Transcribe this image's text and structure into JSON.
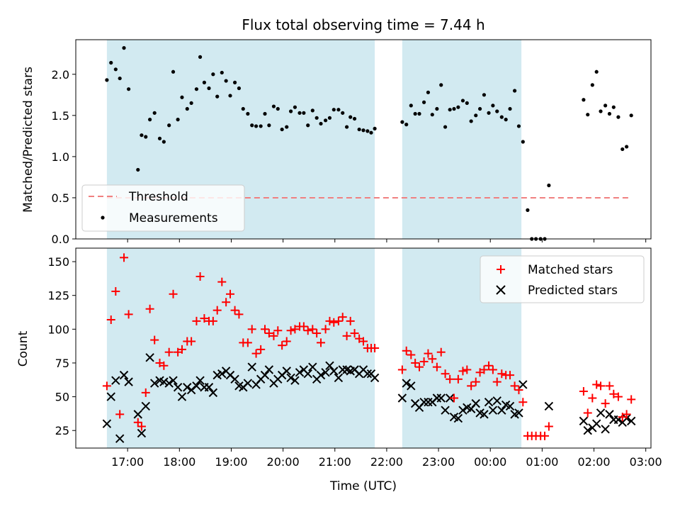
{
  "chart_data": {
    "type": "scatter",
    "title": "Flux total observing time = 7.44 h",
    "xlabel": "Time (UTC)",
    "x_tick_labels": [
      "17:00",
      "18:00",
      "19:00",
      "20:00",
      "21:00",
      "22:00",
      "23:00",
      "00:00",
      "01:00",
      "02:00",
      "03:00"
    ],
    "shaded_intervals_hours": [
      [
        16.6,
        21.77
      ],
      [
        22.3,
        24.6
      ]
    ],
    "colors": {
      "shade": "#add8e6",
      "matched": "#ff0000",
      "predicted": "#000000",
      "threshold": "#f08080",
      "measure": "#000000"
    },
    "top": {
      "ylabel": "Matched/Predicted stars",
      "ylim": [
        0,
        2.42
      ],
      "y_ticks": [
        "0.0",
        "0.5",
        "1.0",
        "1.5",
        "2.0"
      ],
      "threshold_value": 0.5,
      "legend": [
        "Threshold",
        "Measurements"
      ],
      "legend_position": "lower-left",
      "measurements": [
        [
          16.6,
          1.93
        ],
        [
          16.68,
          2.14
        ],
        [
          16.77,
          2.06
        ],
        [
          16.85,
          1.95
        ],
        [
          16.93,
          2.32
        ],
        [
          17.02,
          1.82
        ],
        [
          17.2,
          0.84
        ],
        [
          17.27,
          1.26
        ],
        [
          17.35,
          1.24
        ],
        [
          17.43,
          1.45
        ],
        [
          17.52,
          1.53
        ],
        [
          17.62,
          1.22
        ],
        [
          17.7,
          1.18
        ],
        [
          17.8,
          1.38
        ],
        [
          17.88,
          2.03
        ],
        [
          17.97,
          1.45
        ],
        [
          18.05,
          1.72
        ],
        [
          18.15,
          1.58
        ],
        [
          18.23,
          1.65
        ],
        [
          18.33,
          1.82
        ],
        [
          18.4,
          2.21
        ],
        [
          18.48,
          1.9
        ],
        [
          18.57,
          1.83
        ],
        [
          18.65,
          2.0
        ],
        [
          18.73,
          1.73
        ],
        [
          18.82,
          2.02
        ],
        [
          18.9,
          1.92
        ],
        [
          18.98,
          1.74
        ],
        [
          19.07,
          1.9
        ],
        [
          19.15,
          1.83
        ],
        [
          19.23,
          1.58
        ],
        [
          19.32,
          1.52
        ],
        [
          19.4,
          1.38
        ],
        [
          19.48,
          1.37
        ],
        [
          19.57,
          1.37
        ],
        [
          19.65,
          1.52
        ],
        [
          19.73,
          1.38
        ],
        [
          19.82,
          1.61
        ],
        [
          19.9,
          1.58
        ],
        [
          19.98,
          1.33
        ],
        [
          20.07,
          1.36
        ],
        [
          20.15,
          1.55
        ],
        [
          20.23,
          1.6
        ],
        [
          20.32,
          1.53
        ],
        [
          20.4,
          1.53
        ],
        [
          20.48,
          1.38
        ],
        [
          20.57,
          1.56
        ],
        [
          20.65,
          1.47
        ],
        [
          20.73,
          1.4
        ],
        [
          20.82,
          1.44
        ],
        [
          20.9,
          1.47
        ],
        [
          20.98,
          1.57
        ],
        [
          21.07,
          1.57
        ],
        [
          21.15,
          1.53
        ],
        [
          21.23,
          1.36
        ],
        [
          21.3,
          1.48
        ],
        [
          21.38,
          1.46
        ],
        [
          21.47,
          1.33
        ],
        [
          21.55,
          1.32
        ],
        [
          21.63,
          1.31
        ],
        [
          21.7,
          1.29
        ],
        [
          21.77,
          1.34
        ],
        [
          22.3,
          1.42
        ],
        [
          22.38,
          1.39
        ],
        [
          22.47,
          1.62
        ],
        [
          22.55,
          1.52
        ],
        [
          22.63,
          1.52
        ],
        [
          22.72,
          1.66
        ],
        [
          22.8,
          1.78
        ],
        [
          22.88,
          1.51
        ],
        [
          22.97,
          1.58
        ],
        [
          23.05,
          1.87
        ],
        [
          23.13,
          1.36
        ],
        [
          23.22,
          1.57
        ],
        [
          23.3,
          1.58
        ],
        [
          23.38,
          1.6
        ],
        [
          23.47,
          1.68
        ],
        [
          23.55,
          1.65
        ],
        [
          23.63,
          1.43
        ],
        [
          23.72,
          1.5
        ],
        [
          23.8,
          1.58
        ],
        [
          23.88,
          1.75
        ],
        [
          23.97,
          1.53
        ],
        [
          24.05,
          1.62
        ],
        [
          24.13,
          1.55
        ],
        [
          24.22,
          1.48
        ],
        [
          24.3,
          1.45
        ],
        [
          24.38,
          1.58
        ],
        [
          24.47,
          1.8
        ],
        [
          24.55,
          1.37
        ],
        [
          24.63,
          1.18
        ],
        [
          24.72,
          0.35
        ],
        [
          24.8,
          0.0
        ],
        [
          24.88,
          0.0
        ],
        [
          24.97,
          0.0
        ],
        [
          25.05,
          0.0
        ],
        [
          25.13,
          0.65
        ],
        [
          25.8,
          1.69
        ],
        [
          25.88,
          1.51
        ],
        [
          25.97,
          1.87
        ],
        [
          26.05,
          2.03
        ],
        [
          26.13,
          1.55
        ],
        [
          26.22,
          1.62
        ],
        [
          26.3,
          1.52
        ],
        [
          26.38,
          1.6
        ],
        [
          26.47,
          1.48
        ],
        [
          26.55,
          1.09
        ],
        [
          26.63,
          1.12
        ],
        [
          26.72,
          1.5
        ]
      ]
    },
    "bottom": {
      "ylabel": "Count",
      "ylim": [
        12,
        160
      ],
      "y_ticks": [
        "25",
        "50",
        "75",
        "100",
        "125",
        "150"
      ],
      "legend": [
        "Matched stars",
        "Predicted stars"
      ],
      "legend_position": "upper-right",
      "matched": [
        [
          16.6,
          58
        ],
        [
          16.68,
          107
        ],
        [
          16.77,
          128
        ],
        [
          16.85,
          37
        ],
        [
          16.93,
          153
        ],
        [
          17.02,
          111
        ],
        [
          17.2,
          31
        ],
        [
          17.27,
          28
        ],
        [
          17.35,
          53
        ],
        [
          17.43,
          115
        ],
        [
          17.52,
          92
        ],
        [
          17.62,
          75
        ],
        [
          17.7,
          73
        ],
        [
          17.8,
          83
        ],
        [
          17.88,
          126
        ],
        [
          17.97,
          83
        ],
        [
          18.05,
          85
        ],
        [
          18.15,
          91
        ],
        [
          18.23,
          91
        ],
        [
          18.33,
          106
        ],
        [
          18.4,
          139
        ],
        [
          18.48,
          108
        ],
        [
          18.57,
          106
        ],
        [
          18.65,
          106
        ],
        [
          18.73,
          114
        ],
        [
          18.82,
          135
        ],
        [
          18.9,
          120
        ],
        [
          18.98,
          126
        ],
        [
          19.07,
          114
        ],
        [
          19.15,
          111
        ],
        [
          19.23,
          90
        ],
        [
          19.32,
          90
        ],
        [
          19.4,
          100
        ],
        [
          19.48,
          82
        ],
        [
          19.57,
          85
        ],
        [
          19.65,
          100
        ],
        [
          19.73,
          97
        ],
        [
          19.82,
          95
        ],
        [
          19.9,
          99
        ],
        [
          19.98,
          88
        ],
        [
          20.07,
          91
        ],
        [
          20.15,
          99
        ],
        [
          20.23,
          100
        ],
        [
          20.32,
          102
        ],
        [
          20.4,
          102
        ],
        [
          20.48,
          99
        ],
        [
          20.57,
          100
        ],
        [
          20.65,
          97
        ],
        [
          20.73,
          90
        ],
        [
          20.82,
          100
        ],
        [
          20.9,
          106
        ],
        [
          20.98,
          105
        ],
        [
          21.07,
          106
        ],
        [
          21.15,
          109
        ],
        [
          21.23,
          95
        ],
        [
          21.3,
          106
        ],
        [
          21.38,
          97
        ],
        [
          21.47,
          93
        ],
        [
          21.55,
          91
        ],
        [
          21.63,
          86
        ],
        [
          21.7,
          86
        ],
        [
          21.77,
          86
        ],
        [
          22.3,
          70
        ],
        [
          22.38,
          84
        ],
        [
          22.47,
          81
        ],
        [
          22.55,
          75
        ],
        [
          22.63,
          72
        ],
        [
          22.72,
          76
        ],
        [
          22.8,
          82
        ],
        [
          22.88,
          78
        ],
        [
          22.97,
          72
        ],
        [
          23.05,
          83
        ],
        [
          23.13,
          67
        ],
        [
          23.22,
          63
        ],
        [
          23.3,
          49
        ],
        [
          23.38,
          63
        ],
        [
          23.47,
          69
        ],
        [
          23.55,
          70
        ],
        [
          23.63,
          58
        ],
        [
          23.72,
          61
        ],
        [
          23.8,
          68
        ],
        [
          23.88,
          70
        ],
        [
          23.97,
          73
        ],
        [
          24.05,
          70
        ],
        [
          24.13,
          61
        ],
        [
          24.22,
          67
        ],
        [
          24.3,
          66
        ],
        [
          24.38,
          66
        ],
        [
          24.47,
          58
        ],
        [
          24.55,
          55
        ],
        [
          24.63,
          46
        ],
        [
          24.72,
          21
        ],
        [
          24.8,
          21
        ],
        [
          24.88,
          21
        ],
        [
          24.97,
          21
        ],
        [
          25.05,
          21
        ],
        [
          25.13,
          28
        ],
        [
          25.8,
          54
        ],
        [
          25.88,
          38
        ],
        [
          25.97,
          49
        ],
        [
          26.05,
          59
        ],
        [
          26.13,
          58
        ],
        [
          26.22,
          45
        ],
        [
          26.3,
          58
        ],
        [
          26.38,
          52
        ],
        [
          26.47,
          50
        ],
        [
          26.55,
          35
        ],
        [
          26.63,
          37
        ],
        [
          26.72,
          48
        ]
      ],
      "predicted": [
        [
          16.6,
          30
        ],
        [
          16.68,
          50
        ],
        [
          16.77,
          62
        ],
        [
          16.85,
          19
        ],
        [
          16.93,
          66
        ],
        [
          17.02,
          61
        ],
        [
          17.2,
          37
        ],
        [
          17.27,
          23
        ],
        [
          17.35,
          43
        ],
        [
          17.43,
          79
        ],
        [
          17.52,
          60
        ],
        [
          17.62,
          62
        ],
        [
          17.7,
          61
        ],
        [
          17.8,
          60
        ],
        [
          17.88,
          62
        ],
        [
          17.97,
          57
        ],
        [
          18.05,
          50
        ],
        [
          18.15,
          57
        ],
        [
          18.23,
          55
        ],
        [
          18.33,
          58
        ],
        [
          18.4,
          62
        ],
        [
          18.48,
          57
        ],
        [
          18.57,
          57
        ],
        [
          18.65,
          53
        ],
        [
          18.73,
          66
        ],
        [
          18.82,
          67
        ],
        [
          18.9,
          69
        ],
        [
          18.98,
          66
        ],
        [
          19.07,
          63
        ],
        [
          19.15,
          58
        ],
        [
          19.23,
          57
        ],
        [
          19.32,
          60
        ],
        [
          19.4,
          72
        ],
        [
          19.48,
          59
        ],
        [
          19.57,
          63
        ],
        [
          19.65,
          66
        ],
        [
          19.73,
          70
        ],
        [
          19.82,
          60
        ],
        [
          19.9,
          63
        ],
        [
          19.98,
          66
        ],
        [
          20.07,
          69
        ],
        [
          20.15,
          64
        ],
        [
          20.23,
          62
        ],
        [
          20.32,
          68
        ],
        [
          20.4,
          70
        ],
        [
          20.48,
          67
        ],
        [
          20.57,
          72
        ],
        [
          20.65,
          63
        ],
        [
          20.73,
          66
        ],
        [
          20.82,
          68
        ],
        [
          20.9,
          73
        ],
        [
          20.98,
          69
        ],
        [
          21.07,
          64
        ],
        [
          21.15,
          70
        ],
        [
          21.23,
          70
        ],
        [
          21.3,
          69
        ],
        [
          21.38,
          70
        ],
        [
          21.47,
          67
        ],
        [
          21.55,
          70
        ],
        [
          21.63,
          67
        ],
        [
          21.7,
          67
        ],
        [
          21.77,
          64
        ],
        [
          22.3,
          49
        ],
        [
          22.38,
          60
        ],
        [
          22.47,
          58
        ],
        [
          22.55,
          45
        ],
        [
          22.63,
          42
        ],
        [
          22.72,
          46
        ],
        [
          22.8,
          46
        ],
        [
          22.88,
          46
        ],
        [
          22.97,
          49
        ],
        [
          23.05,
          49
        ],
        [
          23.13,
          40
        ],
        [
          23.22,
          49
        ],
        [
          23.3,
          35
        ],
        [
          23.38,
          34
        ],
        [
          23.47,
          40
        ],
        [
          23.55,
          42
        ],
        [
          23.63,
          41
        ],
        [
          23.72,
          45
        ],
        [
          23.8,
          38
        ],
        [
          23.88,
          37
        ],
        [
          23.97,
          46
        ],
        [
          24.05,
          40
        ],
        [
          24.13,
          47
        ],
        [
          24.22,
          40
        ],
        [
          24.3,
          44
        ],
        [
          24.38,
          43
        ],
        [
          24.47,
          37
        ],
        [
          24.55,
          38
        ],
        [
          24.63,
          59
        ],
        [
          25.13,
          43
        ],
        [
          25.8,
          32
        ],
        [
          25.88,
          25
        ],
        [
          25.97,
          27
        ],
        [
          26.05,
          30
        ],
        [
          26.13,
          38
        ],
        [
          26.22,
          26
        ],
        [
          26.3,
          37
        ],
        [
          26.38,
          33
        ],
        [
          26.47,
          33
        ],
        [
          26.55,
          31
        ],
        [
          26.63,
          34
        ],
        [
          26.72,
          32
        ]
      ]
    }
  }
}
